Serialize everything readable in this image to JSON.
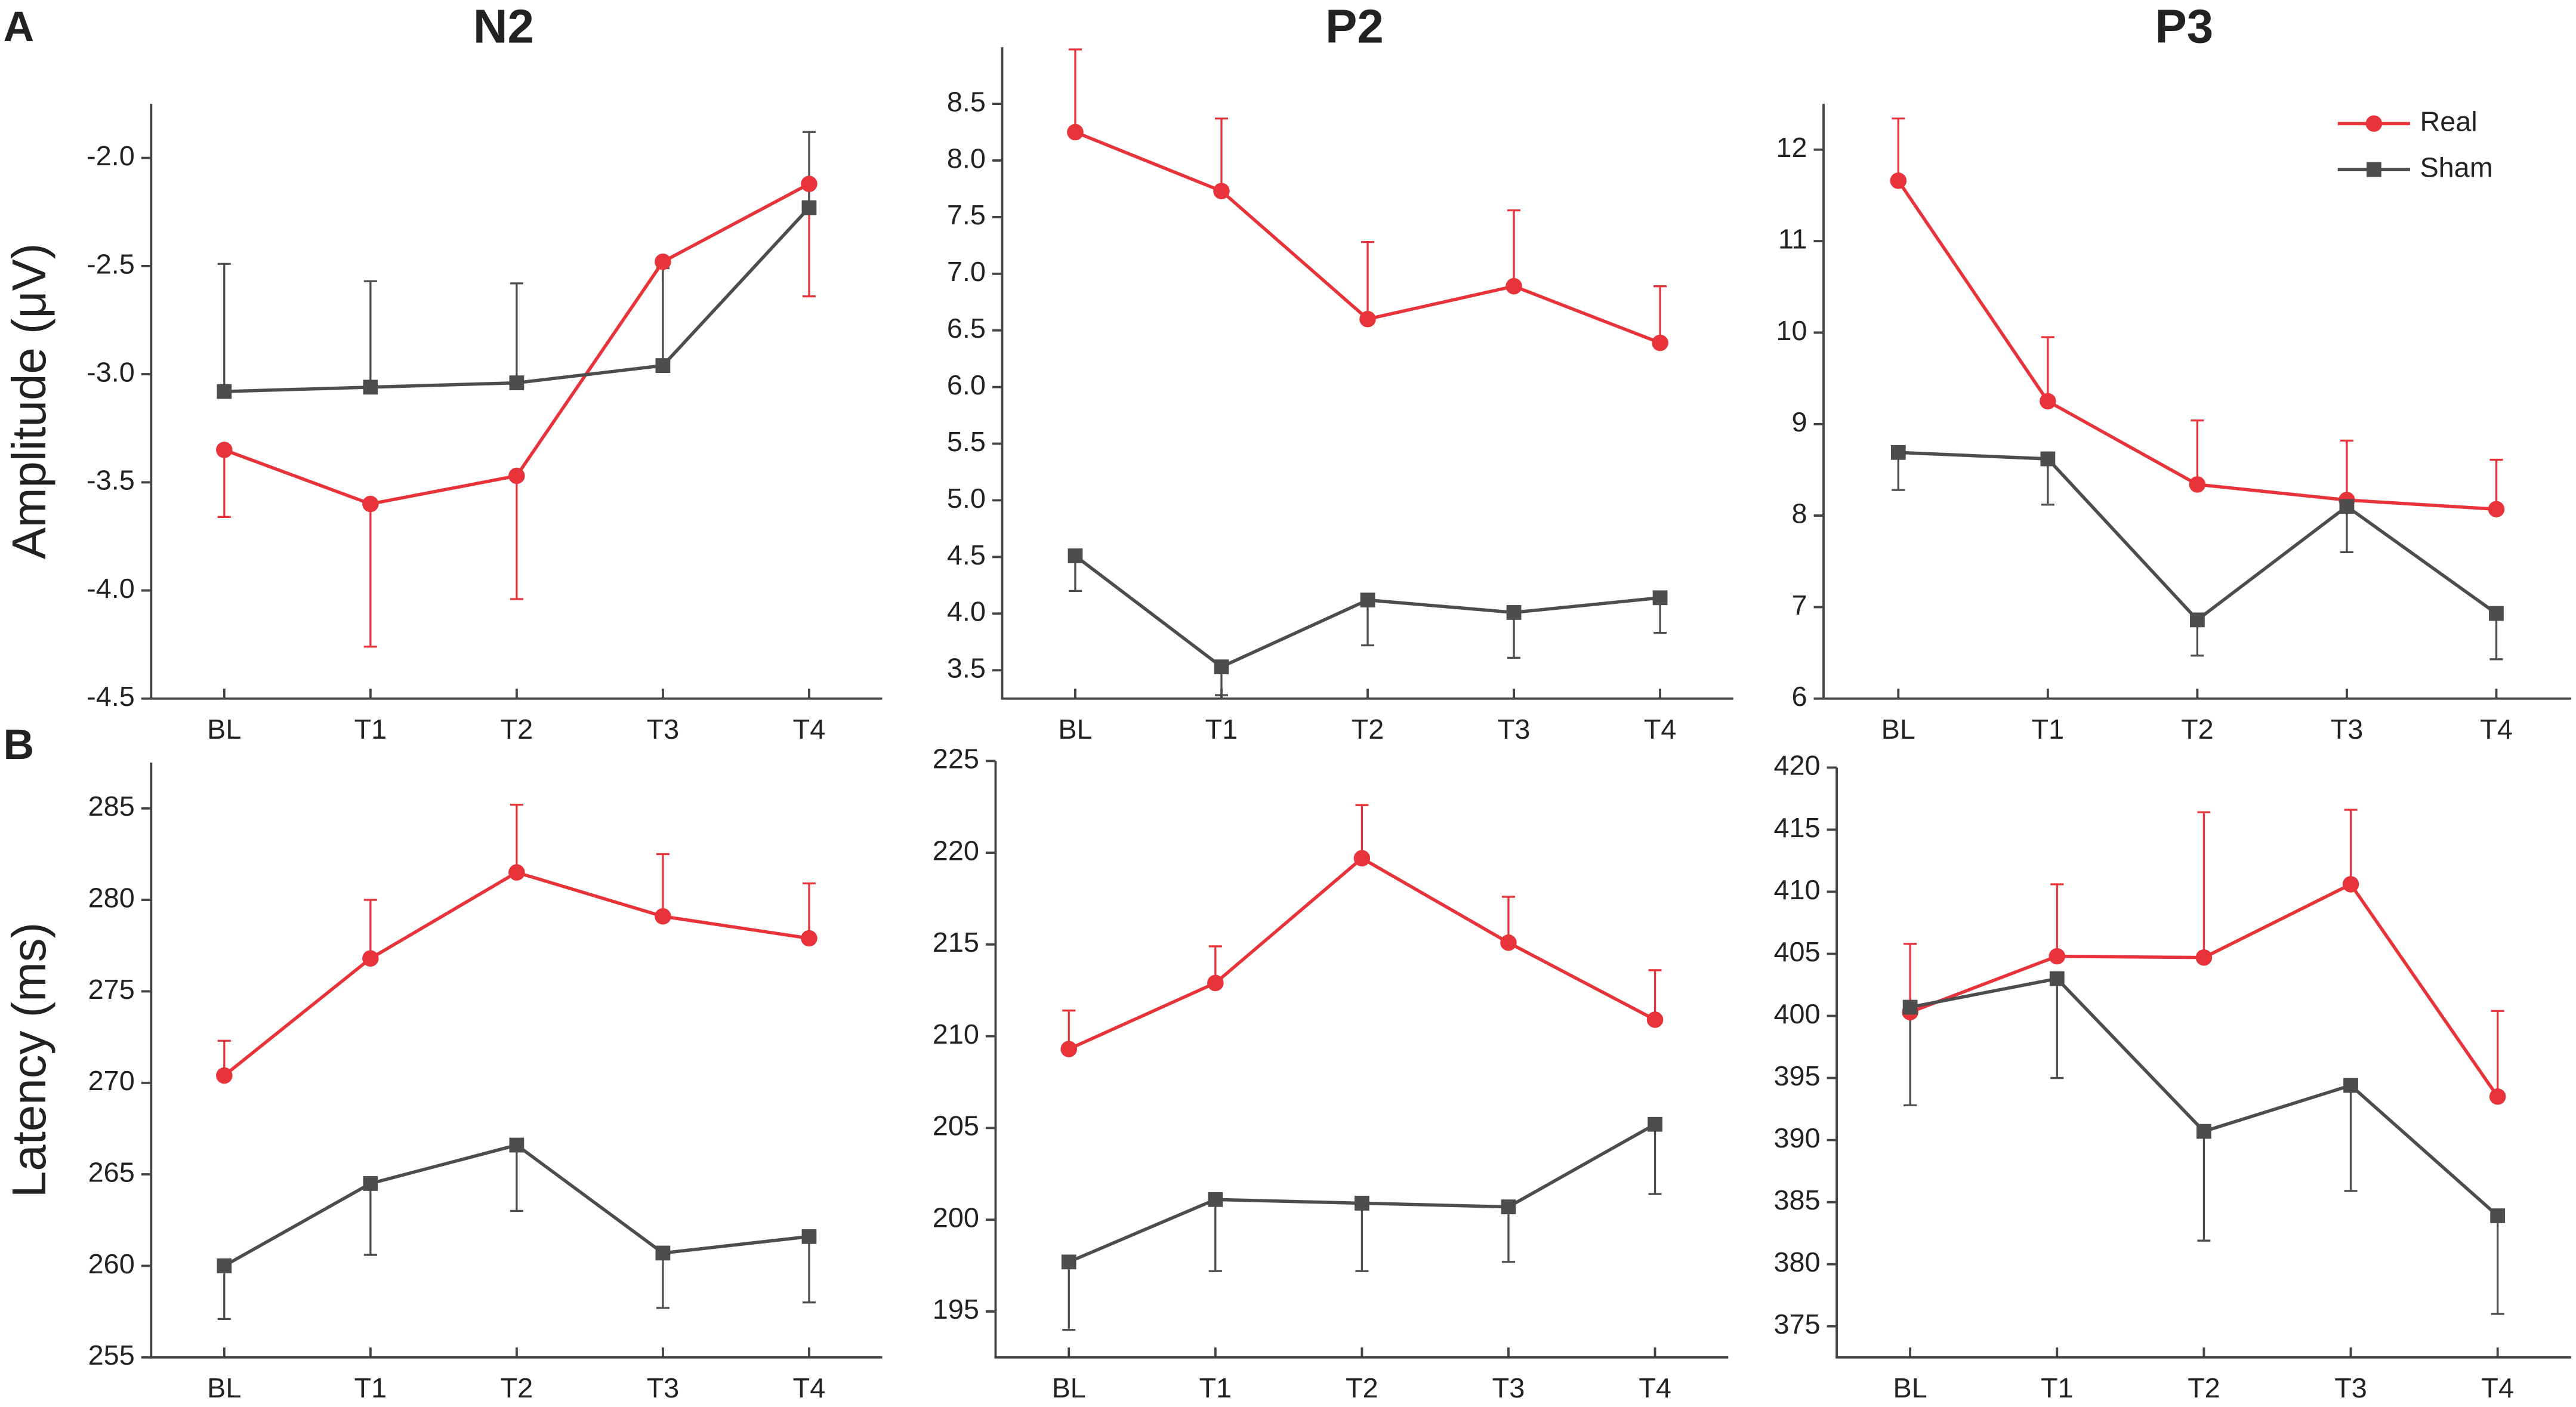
{
  "chart_data": [
    {
      "type": "line",
      "title": "N2",
      "panel_label": "A",
      "ylabel": "Amplitude (μV)",
      "categories": [
        "BL",
        "T1",
        "T2",
        "T3",
        "T4"
      ],
      "ylim": [
        -4.5,
        -1.75
      ],
      "yticks": [
        -4.5,
        {
          "value": -4,
          "label": "-4.0"
        },
        -3.5,
        {
          "value": -3,
          "label": "-3.0"
        },
        -2.5,
        {
          "value": -2,
          "label": "-2.0"
        }
      ],
      "series": [
        {
          "name": "Real",
          "color": "#e8333a",
          "marker": "circle",
          "error_direction": "down",
          "values": [
            -3.35,
            -3.6,
            -3.47,
            -2.48,
            -2.12
          ],
          "errors": [
            0.31,
            0.66,
            0.57,
            0.48,
            0.52
          ]
        },
        {
          "name": "Sham",
          "color": "#4d4d4d",
          "marker": "square",
          "error_direction": "up",
          "values": [
            -3.08,
            -3.06,
            -3.04,
            -2.96,
            -2.23
          ],
          "errors": [
            0.59,
            0.49,
            0.46,
            0.45,
            0.35
          ]
        }
      ]
    },
    {
      "type": "line",
      "title": "P2",
      "categories": [
        "BL",
        "T1",
        "T2",
        "T3",
        "T4"
      ],
      "ylim": [
        3.25,
        9.0
      ],
      "yticks": [
        3.5,
        {
          "value": 4,
          "label": "4.0"
        },
        4.5,
        {
          "value": 5,
          "label": "5.0"
        },
        5.5,
        {
          "value": 6,
          "label": "6.0"
        },
        6.5,
        {
          "value": 7,
          "label": "7.0"
        },
        7.5,
        {
          "value": 8,
          "label": "8.0"
        },
        8.5
      ],
      "series": [
        {
          "name": "Real",
          "color": "#e8333a",
          "marker": "circle",
          "error_direction": "up",
          "values": [
            8.25,
            7.73,
            6.6,
            6.89,
            6.39
          ],
          "errors": [
            0.73,
            0.64,
            0.68,
            0.67,
            0.5
          ]
        },
        {
          "name": "Sham",
          "color": "#4d4d4d",
          "marker": "square",
          "error_direction": "down",
          "values": [
            4.51,
            3.53,
            4.12,
            4.01,
            4.14
          ],
          "errors": [
            0.31,
            0.25,
            0.4,
            0.4,
            0.31
          ]
        }
      ]
    },
    {
      "type": "line",
      "title": "P3",
      "legend": "upper right",
      "categories": [
        "BL",
        "T1",
        "T2",
        "T3",
        "T4"
      ],
      "ylim": [
        6,
        12.5
      ],
      "yticks": [
        6,
        7,
        8,
        9,
        10,
        11,
        12
      ],
      "series": [
        {
          "name": "Real",
          "color": "#e8333a",
          "marker": "circle",
          "error_direction": "up",
          "values": [
            11.66,
            9.25,
            8.34,
            8.17,
            8.07
          ],
          "errors": [
            0.68,
            0.7,
            0.7,
            0.65,
            0.54
          ]
        },
        {
          "name": "Sham",
          "color": "#4d4d4d",
          "marker": "square",
          "error_direction": "down",
          "values": [
            8.69,
            8.62,
            6.86,
            8.1,
            6.93
          ],
          "errors": [
            0.41,
            0.5,
            0.39,
            0.5,
            0.5
          ]
        }
      ]
    },
    {
      "type": "line",
      "panel_label": "B",
      "ylabel": "Latency (ms)",
      "categories": [
        "BL",
        "T1",
        "T2",
        "T3",
        "T4"
      ],
      "ylim": [
        255,
        287.5
      ],
      "yticks": [
        255,
        260,
        265,
        270,
        275,
        280,
        285
      ],
      "series": [
        {
          "name": "Real",
          "color": "#e8333a",
          "marker": "circle",
          "error_direction": "up",
          "values": [
            270.4,
            276.8,
            281.5,
            279.1,
            277.9
          ],
          "errors": [
            1.9,
            3.2,
            3.7,
            3.4,
            3.0
          ]
        },
        {
          "name": "Sham",
          "color": "#4d4d4d",
          "marker": "square",
          "error_direction": "down",
          "values": [
            260.0,
            264.5,
            266.6,
            260.7,
            261.6
          ],
          "errors": [
            2.9,
            3.9,
            3.6,
            3.0,
            3.6
          ]
        }
      ]
    },
    {
      "type": "line",
      "categories": [
        "BL",
        "T1",
        "T2",
        "T3",
        "T4"
      ],
      "ylim": [
        192.5,
        225
      ],
      "yticks": [
        195,
        200,
        205,
        210,
        215,
        220,
        225
      ],
      "series": [
        {
          "name": "Real",
          "color": "#e8333a",
          "marker": "circle",
          "error_direction": "up",
          "values": [
            209.3,
            212.9,
            219.7,
            215.1,
            210.9
          ],
          "errors": [
            2.1,
            2.0,
            2.9,
            2.5,
            2.7
          ]
        },
        {
          "name": "Sham",
          "color": "#4d4d4d",
          "marker": "square",
          "error_direction": "down",
          "values": [
            197.7,
            201.1,
            200.9,
            200.7,
            205.2
          ],
          "errors": [
            3.7,
            3.9,
            3.7,
            3.0,
            3.8
          ]
        }
      ]
    },
    {
      "type": "line",
      "categories": [
        "BL",
        "T1",
        "T2",
        "T3",
        "T4"
      ],
      "ylim": [
        372.5,
        420
      ],
      "yticks": [
        375,
        380,
        385,
        390,
        395,
        400,
        405,
        410,
        415,
        420
      ],
      "series": [
        {
          "name": "Real",
          "color": "#e8333a",
          "marker": "circle",
          "error_direction": "up",
          "values": [
            400.3,
            404.8,
            404.7,
            410.6,
            393.5
          ],
          "errors": [
            5.5,
            5.8,
            11.7,
            6.0,
            6.9
          ]
        },
        {
          "name": "Sham",
          "color": "#4d4d4d",
          "marker": "square",
          "error_direction": "down",
          "values": [
            400.7,
            403.0,
            390.7,
            394.4,
            383.9
          ],
          "errors": [
            7.9,
            8.0,
            8.8,
            8.5,
            7.9
          ]
        }
      ]
    }
  ]
}
